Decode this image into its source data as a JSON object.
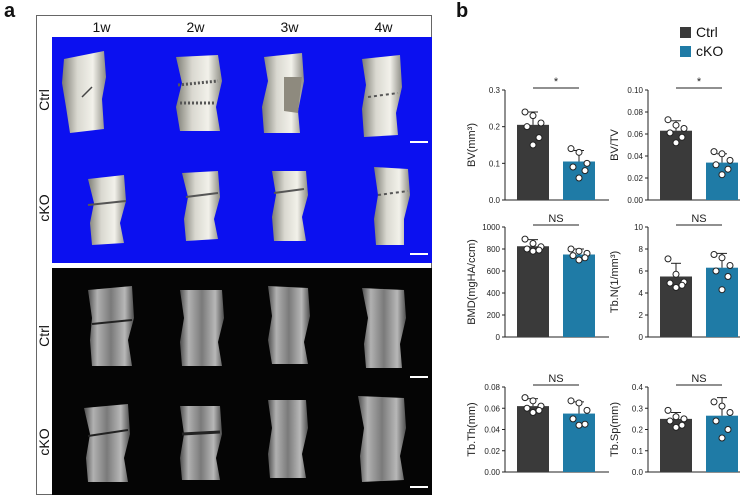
{
  "panel_a": {
    "letter": "a",
    "columns": [
      "1w",
      "2w",
      "3w",
      "4w"
    ],
    "rows_top": [
      "Ctrl",
      "cKO"
    ],
    "rows_bottom": [
      "Ctrl",
      "cKO"
    ]
  },
  "panel_b": {
    "letter": "b",
    "legend": [
      {
        "label": "Ctrl",
        "color": "#3a3a3a"
      },
      {
        "label": "cKO",
        "color": "#1f7ba6"
      }
    ]
  },
  "chart_data": [
    {
      "type": "bar",
      "ylabel": "BV(mm³)",
      "categories": [
        "Ctrl",
        "cKO"
      ],
      "values": [
        0.205,
        0.105
      ],
      "errors": [
        0.035,
        0.03
      ],
      "ylim": [
        0,
        0.3
      ],
      "yticks": [
        "0.0",
        "0.1",
        "0.2",
        "0.3"
      ],
      "significance": "*",
      "points": [
        [
          0.24,
          0.23,
          0.21,
          0.2,
          0.17,
          0.15
        ],
        [
          0.14,
          0.13,
          0.1,
          0.09,
          0.08,
          0.06
        ]
      ]
    },
    {
      "type": "bar",
      "ylabel": "BV/TV",
      "categories": [
        "Ctrl",
        "cKO"
      ],
      "values": [
        0.063,
        0.034
      ],
      "errors": [
        0.009,
        0.008
      ],
      "ylim": [
        0,
        0.1
      ],
      "yticks": [
        "0.00",
        "0.02",
        "0.04",
        "0.06",
        "0.08",
        "0.10"
      ],
      "significance": "*",
      "points": [
        [
          0.073,
          0.068,
          0.065,
          0.061,
          0.057,
          0.052
        ],
        [
          0.044,
          0.042,
          0.036,
          0.032,
          0.028,
          0.023
        ]
      ]
    },
    {
      "type": "bar",
      "ylabel": "BMD(mgHA/ccm)",
      "categories": [
        "Ctrl",
        "cKO"
      ],
      "values": [
        825,
        750
      ],
      "errors": [
        60,
        50
      ],
      "ylim": [
        0,
        1000
      ],
      "yticks": [
        "0",
        "200",
        "400",
        "600",
        "800",
        "1000"
      ],
      "significance": "NS",
      "points": [
        [
          890,
          850,
          820,
          800,
          790,
          780
        ],
        [
          800,
          780,
          760,
          740,
          720,
          700
        ]
      ]
    },
    {
      "type": "bar",
      "ylabel": "Tb.N(1/mm³)",
      "categories": [
        "Ctrl",
        "cKO"
      ],
      "values": [
        5.5,
        6.3
      ],
      "errors": [
        1.2,
        1.3
      ],
      "ylim": [
        0,
        10
      ],
      "yticks": [
        "0",
        "2",
        "4",
        "6",
        "8",
        "10"
      ],
      "significance": "NS",
      "points": [
        [
          7.1,
          5.7,
          5.0,
          4.9,
          4.7,
          4.5
        ],
        [
          7.5,
          7.2,
          6.5,
          6.0,
          5.5,
          4.3
        ]
      ]
    },
    {
      "type": "bar",
      "ylabel": "Tb.Th(mm)",
      "categories": [
        "Ctrl",
        "cKO"
      ],
      "values": [
        0.062,
        0.055
      ],
      "errors": [
        0.007,
        0.011
      ],
      "ylim": [
        0,
        0.08
      ],
      "yticks": [
        "0.00",
        "0.02",
        "0.04",
        "0.06",
        "0.08"
      ],
      "significance": "NS",
      "points": [
        [
          0.07,
          0.067,
          0.062,
          0.06,
          0.058,
          0.056
        ],
        [
          0.067,
          0.065,
          0.058,
          0.05,
          0.045,
          0.044
        ]
      ]
    },
    {
      "type": "bar",
      "ylabel": "Tb.Sp(mm)",
      "categories": [
        "Ctrl",
        "cKO"
      ],
      "values": [
        0.25,
        0.265
      ],
      "errors": [
        0.03,
        0.085
      ],
      "ylim": [
        0,
        0.4
      ],
      "yticks": [
        "0.0",
        "0.1",
        "0.2",
        "0.3",
        "0.4"
      ],
      "significance": "NS",
      "points": [
        [
          0.29,
          0.26,
          0.25,
          0.24,
          0.22,
          0.21
        ],
        [
          0.33,
          0.31,
          0.28,
          0.24,
          0.2,
          0.16
        ]
      ]
    }
  ]
}
